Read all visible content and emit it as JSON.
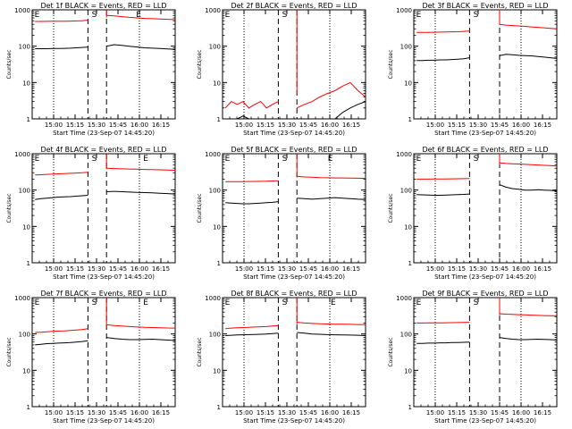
{
  "ylabel": "Counts/sec",
  "xlabel": "Start Time (23-Sep-07 14:45:20)",
  "x_ticks": [
    "15:00",
    "15:15",
    "15:30",
    "15:45",
    "16:00",
    "16:15"
  ],
  "y_ticks": [
    "1",
    "10",
    "100",
    "1000"
  ],
  "colors": {
    "events": "#000000",
    "lld": "#ff0000",
    "axes": "#000000"
  },
  "chart_data": [
    {
      "type": "line",
      "title": "Det 1f BLACK = Events, RED = LLD",
      "ylim": [
        1,
        1000
      ],
      "yscale": "log",
      "xlim": [
        "14:45",
        "16:25"
      ],
      "markers": [
        {
          "label": "E",
          "x": "14:46"
        },
        {
          "label": "S",
          "x": "15:26"
        },
        {
          "label": "E",
          "x": "15:57"
        }
      ],
      "segments": [
        {
          "x": [
            "14:47",
            "15:24"
          ],
          "events": 85,
          "lld": 480
        },
        {
          "x": [
            "15:37",
            "16:25"
          ],
          "events": 100,
          "lld": 620
        }
      ],
      "series": [
        {
          "values": [
            85,
            85,
            85,
            86,
            86,
            87,
            88,
            90,
            92,
            95,
            100,
            110,
            105,
            100,
            95,
            90,
            88,
            86,
            84,
            82
          ]
        },
        {
          "values": [
            480,
            480,
            482,
            484,
            486,
            488,
            490,
            495,
            500,
            520,
            700,
            680,
            650,
            620,
            600,
            580,
            570,
            560,
            550,
            540
          ]
        }
      ]
    },
    {
      "type": "line",
      "title": "Det 2f BLACK = Events, RED = LLD",
      "ylim": [
        1,
        1000
      ],
      "yscale": "log",
      "xlim": [
        "14:45",
        "16:25"
      ],
      "markers": [
        {
          "label": "E",
          "x": "14:46"
        },
        {
          "label": "S",
          "x": "15:26"
        }
      ],
      "segments": [
        {
          "x": [
            "14:47",
            "15:24"
          ],
          "events": 1,
          "lld": 3
        },
        {
          "x": [
            "15:37",
            "16:25"
          ],
          "events": 2,
          "lld": 5
        }
      ],
      "series": [
        {
          "values": [
            1,
            1,
            1,
            1.2,
            1,
            1,
            1,
            1,
            1,
            1,
            1,
            1,
            1,
            1,
            1,
            1,
            1.5,
            2,
            2.5,
            3
          ]
        },
        {
          "values": [
            2,
            3,
            2.5,
            3,
            2,
            2.5,
            3,
            2,
            2.5,
            3,
            2,
            2.5,
            3,
            4,
            5,
            6,
            8,
            10,
            6,
            4
          ]
        }
      ]
    },
    {
      "type": "line",
      "title": "Det 3f BLACK = Events, RED = LLD",
      "ylim": [
        1,
        1000
      ],
      "yscale": "log",
      "xlim": [
        "14:45",
        "16:25"
      ],
      "markers": [
        {
          "label": "E",
          "x": "14:46"
        },
        {
          "label": "S",
          "x": "15:26"
        }
      ],
      "segments": [
        {
          "x": [
            "14:47",
            "15:24"
          ],
          "events": 40,
          "lld": 240
        },
        {
          "x": [
            "15:45",
            "16:25"
          ],
          "events": 60,
          "lld": 380
        }
      ],
      "series": [
        {
          "values": [
            40,
            40,
            41,
            41,
            42,
            42,
            43,
            44,
            45,
            48,
            55,
            60,
            58,
            56,
            55,
            54,
            52,
            50,
            48,
            46
          ]
        },
        {
          "values": [
            240,
            240,
            240,
            242,
            244,
            246,
            248,
            250,
            255,
            260,
            400,
            380,
            370,
            360,
            350,
            340,
            330,
            320,
            310,
            300
          ]
        }
      ]
    },
    {
      "type": "line",
      "title": "Det 4f BLACK = Events, RED = LLD",
      "ylim": [
        1,
        1000
      ],
      "yscale": "log",
      "xlim": [
        "14:45",
        "16:25"
      ],
      "markers": [
        {
          "label": "E",
          "x": "14:46"
        },
        {
          "label": "S",
          "x": "15:26"
        },
        {
          "label": "E",
          "x": "16:02"
        }
      ],
      "segments": [
        {
          "x": [
            "14:47",
            "15:24"
          ],
          "events": 65,
          "lld": 280
        },
        {
          "x": [
            "15:37",
            "16:25"
          ],
          "events": 90,
          "lld": 380
        }
      ],
      "series": [
        {
          "values": [
            55,
            58,
            60,
            62,
            64,
            65,
            66,
            68,
            70,
            72,
            90,
            92,
            90,
            88,
            86,
            85,
            84,
            82,
            80,
            78
          ]
        },
        {
          "values": [
            260,
            265,
            270,
            275,
            280,
            285,
            290,
            295,
            300,
            310,
            400,
            390,
            385,
            380,
            375,
            370,
            365,
            360,
            355,
            350
          ]
        }
      ]
    },
    {
      "type": "line",
      "title": "Det 5f BLACK = Events, RED = LLD",
      "ylim": [
        1,
        1000
      ],
      "yscale": "log",
      "xlim": [
        "14:45",
        "16:25"
      ],
      "markers": [
        {
          "label": "E",
          "x": "14:46"
        },
        {
          "label": "S",
          "x": "15:26"
        },
        {
          "label": "E",
          "x": "15:58"
        }
      ],
      "segments": [
        {
          "x": [
            "14:47",
            "15:24"
          ],
          "events": 45,
          "lld": 170
        },
        {
          "x": [
            "15:37",
            "16:25"
          ],
          "events": 60,
          "lld": 220
        }
      ],
      "series": [
        {
          "values": [
            45,
            44,
            43,
            42,
            42,
            43,
            44,
            45,
            46,
            48,
            60,
            58,
            56,
            58,
            60,
            62,
            60,
            58,
            56,
            55
          ]
        },
        {
          "values": [
            170,
            170,
            170,
            171,
            172,
            173,
            174,
            175,
            178,
            180,
            240,
            230,
            225,
            220,
            218,
            216,
            215,
            214,
            212,
            210
          ]
        }
      ]
    },
    {
      "type": "line",
      "title": "Det 6f BLACK = Events, RED = LLD",
      "ylim": [
        1,
        1000
      ],
      "yscale": "log",
      "xlim": [
        "14:45",
        "16:25"
      ],
      "markers": [
        {
          "label": "E",
          "x": "14:46"
        },
        {
          "label": "S",
          "x": "15:26"
        }
      ],
      "segments": [
        {
          "x": [
            "14:47",
            "15:24"
          ],
          "events": 75,
          "lld": 200
        },
        {
          "x": [
            "15:45",
            "16:25"
          ],
          "events": 100,
          "lld": 500
        }
      ],
      "series": [
        {
          "values": [
            75,
            74,
            73,
            72,
            72,
            73,
            74,
            75,
            76,
            78,
            140,
            120,
            110,
            105,
            100,
            100,
            102,
            100,
            98,
            95
          ]
        },
        {
          "values": [
            200,
            200,
            200,
            201,
            202,
            203,
            204,
            205,
            206,
            208,
            560,
            540,
            530,
            520,
            510,
            500,
            490,
            480,
            470,
            460
          ]
        }
      ]
    },
    {
      "type": "line",
      "title": "Det 7f BLACK = Events, RED = LLD",
      "ylim": [
        1,
        1000
      ],
      "yscale": "log",
      "xlim": [
        "14:45",
        "16:25"
      ],
      "markers": [
        {
          "label": "E",
          "x": "14:46"
        },
        {
          "label": "S",
          "x": "15:26"
        },
        {
          "label": "E",
          "x": "16:02"
        }
      ],
      "segments": [
        {
          "x": [
            "14:47",
            "15:24"
          ],
          "events": 55,
          "lld": 120
        },
        {
          "x": [
            "15:37",
            "16:25"
          ],
          "events": 70,
          "lld": 150
        }
      ],
      "series": [
        {
          "values": [
            50,
            52,
            54,
            55,
            56,
            57,
            58,
            60,
            62,
            65,
            80,
            75,
            72,
            70,
            70,
            71,
            72,
            70,
            68,
            66
          ]
        },
        {
          "values": [
            110,
            112,
            115,
            118,
            120,
            122,
            125,
            128,
            132,
            140,
            180,
            170,
            165,
            160,
            155,
            152,
            150,
            148,
            146,
            145
          ]
        }
      ]
    },
    {
      "type": "line",
      "title": "Det 8f BLACK = Events, RED = LLD",
      "ylim": [
        1,
        1000
      ],
      "yscale": "log",
      "xlim": [
        "14:45",
        "16:25"
      ],
      "markers": [
        {
          "label": "E",
          "x": "14:46"
        },
        {
          "label": "S",
          "x": "15:26"
        },
        {
          "label": "E",
          "x": "16:00"
        }
      ],
      "segments": [
        {
          "x": [
            "14:47",
            "15:24"
          ],
          "events": 95,
          "lld": 150
        },
        {
          "x": [
            "15:37",
            "16:25"
          ],
          "events": 95,
          "lld": 190
        }
      ],
      "series": [
        {
          "values": [
            90,
            92,
            94,
            95,
            96,
            97,
            98,
            100,
            102,
            105,
            110,
            105,
            100,
            98,
            96,
            95,
            94,
            93,
            92,
            90
          ]
        },
        {
          "values": [
            140,
            145,
            148,
            150,
            152,
            155,
            158,
            160,
            165,
            170,
            210,
            200,
            195,
            190,
            188,
            186,
            185,
            184,
            182,
            180
          ]
        }
      ]
    },
    {
      "type": "line",
      "title": "Det 9f BLACK = Events, RED = LLD",
      "ylim": [
        1,
        1000
      ],
      "yscale": "log",
      "xlim": [
        "14:45",
        "16:25"
      ],
      "markers": [
        {
          "label": "E",
          "x": "14:46"
        },
        {
          "label": "S",
          "x": "15:26"
        }
      ],
      "segments": [
        {
          "x": [
            "14:47",
            "15:24"
          ],
          "events": 55,
          "lld": 200
        },
        {
          "x": [
            "15:45",
            "16:25"
          ],
          "events": 70,
          "lld": 330
        }
      ],
      "series": [
        {
          "values": [
            55,
            55,
            56,
            56,
            57,
            57,
            58,
            58,
            59,
            60,
            80,
            75,
            72,
            70,
            70,
            71,
            72,
            71,
            70,
            68
          ]
        },
        {
          "values": [
            200,
            200,
            201,
            202,
            203,
            204,
            205,
            206,
            208,
            210,
            360,
            350,
            345,
            340,
            335,
            330,
            325,
            320,
            318,
            315
          ]
        }
      ]
    }
  ]
}
